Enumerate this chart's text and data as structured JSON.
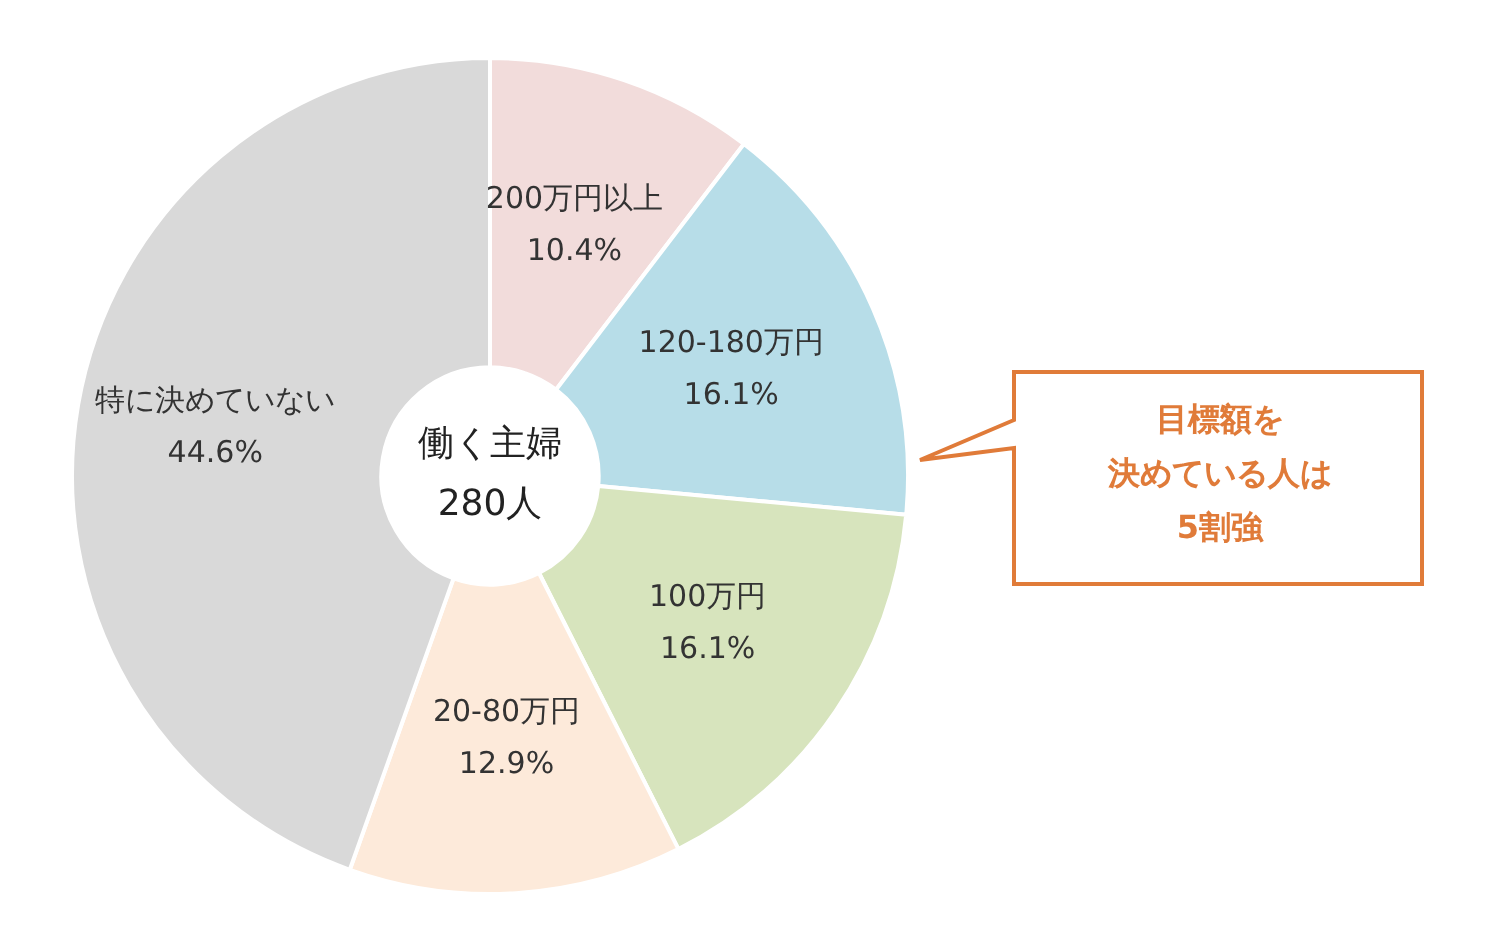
{
  "chart_data": {
    "type": "donut",
    "categories": [
      "200万円以上",
      "120-180万円",
      "100万円",
      "20-80万円",
      "特に決めていない"
    ],
    "values": [
      10.4,
      16.1,
      16.1,
      12.9,
      44.6
    ],
    "value_labels": [
      "10.4%",
      "16.1%",
      "16.1%",
      "12.9%",
      "44.6%"
    ],
    "colors": [
      "#f2dcdb",
      "#b7dde8",
      "#d7e4bd",
      "#fdeada",
      "#d9d9d9"
    ],
    "legend": false,
    "annotations": [
      "働く主婦",
      "280人",
      "目標額を",
      "決めている人は",
      "5割強"
    ]
  }
}
